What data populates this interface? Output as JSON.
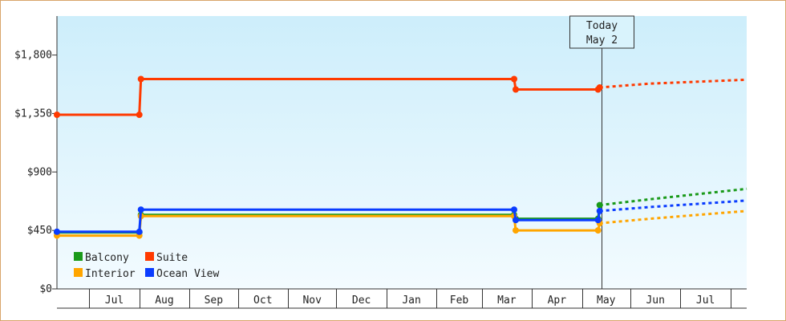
{
  "chart_data": {
    "type": "line",
    "title": "",
    "xlabel": "",
    "ylabel": "",
    "ylim": [
      0,
      2100
    ],
    "y_ticks": [
      0,
      450,
      900,
      1350,
      1800
    ],
    "y_tick_labels": [
      "$0",
      "$450",
      "$900",
      "$1,350",
      "$1,800"
    ],
    "x_range": [
      "2023-05-31",
      "2024-07-31"
    ],
    "month_bands": [
      {
        "label": "Jul",
        "start": "2023-06-20",
        "end": "2023-07-21"
      },
      {
        "label": "Aug",
        "start": "2023-07-21",
        "end": "2023-08-21"
      },
      {
        "label": "Sep",
        "start": "2023-08-21",
        "end": "2023-09-20"
      },
      {
        "label": "Oct",
        "start": "2023-09-20",
        "end": "2023-10-21"
      },
      {
        "label": "Nov",
        "start": "2023-10-21",
        "end": "2023-11-20"
      },
      {
        "label": "Dec",
        "start": "2023-11-20",
        "end": "2023-12-21"
      },
      {
        "label": "Jan",
        "start": "2023-12-21",
        "end": "2024-01-21"
      },
      {
        "label": "Feb",
        "start": "2024-01-21",
        "end": "2024-02-18"
      },
      {
        "label": "Mar",
        "start": "2024-02-18",
        "end": "2024-03-20"
      },
      {
        "label": "Apr",
        "start": "2024-03-20",
        "end": "2024-04-20"
      },
      {
        "label": "May",
        "start": "2024-04-20",
        "end": "2024-05-20"
      },
      {
        "label": "Jun",
        "start": "2024-05-20",
        "end": "2024-06-20"
      },
      {
        "label": "Jul",
        "start": "2024-06-20",
        "end": "2024-07-21"
      }
    ],
    "today": {
      "label_line1": "Today",
      "label_line2": "May 2",
      "date": "2024-05-02"
    },
    "series": [
      {
        "name": "Balcony",
        "color": "#1a9a1a",
        "points": [
          [
            "2023-05-31",
            435
          ],
          [
            "2023-07-21",
            435
          ],
          [
            "2023-07-22",
            570
          ],
          [
            "2024-03-09",
            570
          ],
          [
            "2024-03-10",
            540
          ],
          [
            "2024-04-30",
            540
          ],
          [
            "2024-05-01",
            645
          ]
        ],
        "forecast": [
          [
            "2024-05-01",
            645
          ],
          [
            "2024-06-01",
            690
          ],
          [
            "2024-07-01",
            730
          ],
          [
            "2024-07-31",
            770
          ]
        ]
      },
      {
        "name": "Suite",
        "color": "#ff3a00",
        "points": [
          [
            "2023-05-31",
            1340
          ],
          [
            "2023-07-21",
            1340
          ],
          [
            "2023-07-22",
            1615
          ],
          [
            "2024-03-09",
            1615
          ],
          [
            "2024-03-10",
            1535
          ],
          [
            "2024-04-30",
            1535
          ],
          [
            "2024-05-01",
            1550
          ]
        ],
        "forecast": [
          [
            "2024-05-01",
            1550
          ],
          [
            "2024-06-01",
            1580
          ],
          [
            "2024-07-01",
            1595
          ],
          [
            "2024-07-31",
            1610
          ]
        ]
      },
      {
        "name": "Interior",
        "color": "#ffa500",
        "points": [
          [
            "2023-05-31",
            410
          ],
          [
            "2023-07-21",
            410
          ],
          [
            "2023-07-22",
            560
          ],
          [
            "2024-03-09",
            560
          ],
          [
            "2024-03-10",
            450
          ],
          [
            "2024-04-30",
            450
          ],
          [
            "2024-05-01",
            505
          ]
        ],
        "forecast": [
          [
            "2024-05-01",
            505
          ],
          [
            "2024-06-01",
            540
          ],
          [
            "2024-07-01",
            570
          ],
          [
            "2024-07-31",
            600
          ]
        ]
      },
      {
        "name": "Ocean View",
        "color": "#0a3cff",
        "points": [
          [
            "2023-05-31",
            440
          ],
          [
            "2023-07-21",
            440
          ],
          [
            "2023-07-22",
            610
          ],
          [
            "2024-03-09",
            610
          ],
          [
            "2024-03-10",
            530
          ],
          [
            "2024-04-30",
            530
          ],
          [
            "2024-05-01",
            600
          ]
        ],
        "forecast": [
          [
            "2024-05-01",
            600
          ],
          [
            "2024-06-01",
            630
          ],
          [
            "2024-07-01",
            655
          ],
          [
            "2024-07-31",
            680
          ]
        ]
      }
    ],
    "legend": {
      "placement": "bottom-left",
      "order": [
        "Balcony",
        "Suite",
        "Interior",
        "Ocean View"
      ]
    },
    "grid": false,
    "colors": {
      "frame_border": "#d9a46a",
      "plot_top": "#cdeefb",
      "plot_bottom": "#f3fbff",
      "axis": "#333333"
    }
  }
}
